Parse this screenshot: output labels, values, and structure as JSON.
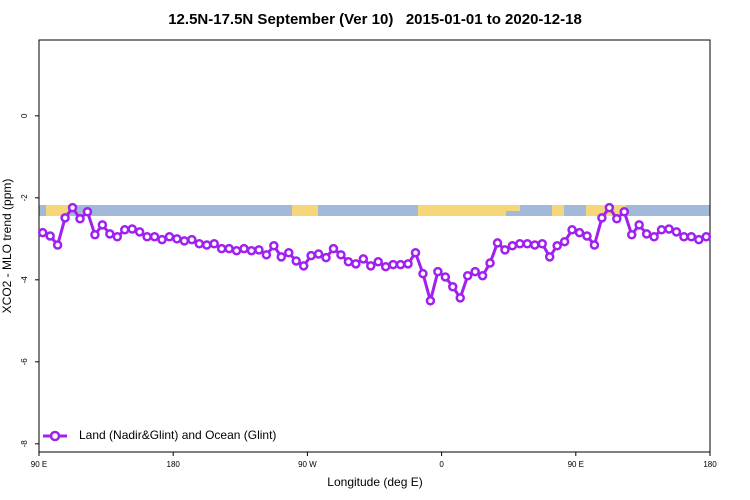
{
  "chart_data": {
    "type": "line",
    "title": "12.5N-17.5N September (Ver 10)   2015-01-01 to 2020-12-18",
    "x_label": "Longitude (deg E)",
    "y_label": "XCO2 - MLO trend (ppm)",
    "x": [
      92.5,
      97.5,
      102.5,
      107.5,
      112.5,
      117.5,
      122.5,
      127.5,
      132.5,
      137.5,
      142.5,
      147.5,
      152.5,
      157.5,
      162.5,
      167.5,
      172.5,
      177.5,
      182.5,
      187.5,
      192.5,
      197.5,
      202.5,
      207.5,
      212.5,
      217.5,
      222.5,
      227.5,
      232.5,
      237.5,
      242.5,
      247.5,
      252.5,
      257.5,
      262.5,
      267.5,
      272.5,
      277.5,
      282.5,
      287.5,
      292.5,
      297.5,
      302.5,
      307.5,
      312.5,
      317.5,
      322.5,
      327.5,
      332.5,
      337.5,
      342.5,
      347.5,
      352.5,
      357.5,
      362.5,
      367.5,
      372.5,
      377.5,
      382.5,
      387.5,
      392.5,
      397.5,
      402.5,
      407.5,
      412.5,
      417.5,
      422.5,
      427.5,
      432.5,
      437.5,
      442.5,
      447.5,
      452.5,
      457.5,
      462.5,
      467.5,
      472.5,
      477.5,
      482.5,
      487.5,
      492.5,
      497.5,
      502.5,
      507.5,
      512.5,
      517.5,
      522.5,
      527.5,
      532.5,
      537.5
    ],
    "series": [
      {
        "name": "Land (Nadir&Glint) and Ocean (Glint)",
        "color": "#a020f0",
        "values": [
          -2.85,
          -2.93,
          -3.15,
          -2.49,
          -2.24,
          -2.51,
          -2.34,
          -2.9,
          -2.66,
          -2.88,
          -2.95,
          -2.78,
          -2.76,
          -2.83,
          -2.95,
          -2.95,
          -3.02,
          -2.95,
          -3.0,
          -3.05,
          -3.02,
          -3.12,
          -3.15,
          -3.12,
          -3.24,
          -3.24,
          -3.29,
          -3.24,
          -3.29,
          -3.27,
          -3.39,
          -3.17,
          -3.44,
          -3.34,
          -3.54,
          -3.66,
          -3.41,
          -3.37,
          -3.46,
          -3.24,
          -3.39,
          -3.56,
          -3.61,
          -3.49,
          -3.66,
          -3.56,
          -3.68,
          -3.63,
          -3.63,
          -3.61,
          -3.34,
          -3.85,
          -4.51,
          -3.8,
          -3.93,
          -4.17,
          -4.44,
          -3.9,
          -3.8,
          -3.9,
          -3.59,
          -3.1,
          -3.27,
          -3.17,
          -3.12,
          -3.12,
          -3.15,
          -3.12,
          -3.44,
          -3.17,
          -3.07,
          -2.78,
          -2.85,
          -2.93,
          -3.15,
          -2.49,
          -2.24,
          -2.51,
          -2.34,
          -2.9,
          -2.66,
          -2.88,
          -2.95,
          -2.78,
          -2.76,
          -2.83,
          -2.95,
          -2.95,
          -3.02,
          -2.95
        ]
      }
    ],
    "xlim": [
      90,
      540
    ],
    "xticks": [
      {
        "value": 90,
        "label": "90 E"
      },
      {
        "value": 180,
        "label": "180"
      },
      {
        "value": 270,
        "label": "90 W"
      },
      {
        "value": 360,
        "label": "0"
      },
      {
        "value": 450,
        "label": "90 E"
      },
      {
        "value": 540,
        "label": "180"
      }
    ],
    "ylim": [
      -8.2,
      1.85
    ],
    "yticks": [
      -8,
      -6,
      -4,
      -2,
      0
    ],
    "legend": "bottom-left"
  }
}
